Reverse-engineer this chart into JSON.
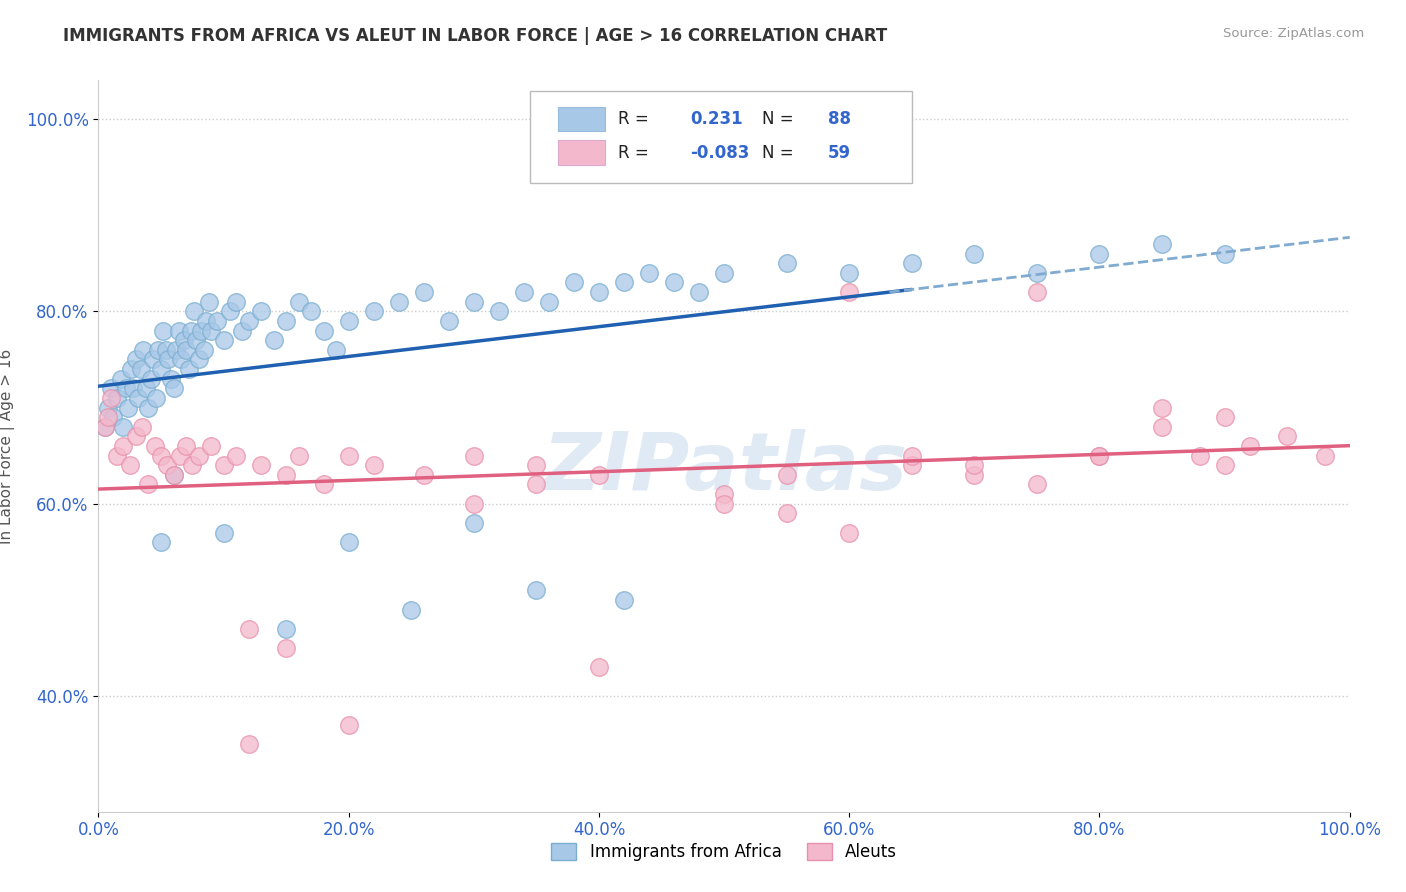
{
  "title": "IMMIGRANTS FROM AFRICA VS ALEUT IN LABOR FORCE | AGE > 16 CORRELATION CHART",
  "source": "Source: ZipAtlas.com",
  "ylabel": "In Labor Force | Age > 16",
  "xlim": [
    0.0,
    1.0
  ],
  "ylim": [
    0.28,
    1.04
  ],
  "x_ticks": [
    0.0,
    0.2,
    0.4,
    0.6,
    0.8,
    1.0
  ],
  "x_tick_labels": [
    "0.0%",
    "20.0%",
    "40.0%",
    "60.0%",
    "80.0%",
    "100.0%"
  ],
  "y_ticks": [
    0.4,
    0.6,
    0.8,
    1.0
  ],
  "y_tick_labels": [
    "40.0%",
    "60.0%",
    "80.0%",
    "100.0%"
  ],
  "r_africa": 0.231,
  "n_africa": 88,
  "r_aleut": -0.083,
  "n_aleut": 59,
  "blue_color": "#a8c8e8",
  "blue_edge_color": "#7aaed0",
  "pink_color": "#f4b8cc",
  "pink_edge_color": "#e890aa",
  "blue_line_color": "#2060b0",
  "pink_line_color": "#e06080",
  "blue_dash_color": "#80aad0",
  "watermark": "ZIPatlas",
  "watermark_color": "#ccdded",
  "legend_label_africa": "Immigrants from Africa",
  "legend_label_aleut": "Aleuts",
  "blue_scatter_x": [
    0.005,
    0.008,
    0.01,
    0.012,
    0.015,
    0.018,
    0.02,
    0.022,
    0.024,
    0.026,
    0.028,
    0.03,
    0.032,
    0.034,
    0.036,
    0.038,
    0.04,
    0.042,
    0.044,
    0.046,
    0.048,
    0.05,
    0.052,
    0.054,
    0.056,
    0.058,
    0.06,
    0.062,
    0.064,
    0.066,
    0.068,
    0.07,
    0.072,
    0.074,
    0.076,
    0.078,
    0.08,
    0.082,
    0.084,
    0.086,
    0.088,
    0.09,
    0.095,
    0.1,
    0.105,
    0.11,
    0.115,
    0.12,
    0.13,
    0.14,
    0.15,
    0.16,
    0.17,
    0.18,
    0.19,
    0.2,
    0.22,
    0.24,
    0.26,
    0.28,
    0.3,
    0.32,
    0.34,
    0.36,
    0.38,
    0.4,
    0.42,
    0.44,
    0.46,
    0.48,
    0.5,
    0.55,
    0.6,
    0.65,
    0.7,
    0.75,
    0.8,
    0.85,
    0.9,
    0.35,
    0.25,
    0.15,
    0.42,
    0.2,
    0.3,
    0.1,
    0.06,
    0.05
  ],
  "blue_scatter_y": [
    0.68,
    0.7,
    0.72,
    0.69,
    0.71,
    0.73,
    0.68,
    0.72,
    0.7,
    0.74,
    0.72,
    0.75,
    0.71,
    0.74,
    0.76,
    0.72,
    0.7,
    0.73,
    0.75,
    0.71,
    0.76,
    0.74,
    0.78,
    0.76,
    0.75,
    0.73,
    0.72,
    0.76,
    0.78,
    0.75,
    0.77,
    0.76,
    0.74,
    0.78,
    0.8,
    0.77,
    0.75,
    0.78,
    0.76,
    0.79,
    0.81,
    0.78,
    0.79,
    0.77,
    0.8,
    0.81,
    0.78,
    0.79,
    0.8,
    0.77,
    0.79,
    0.81,
    0.8,
    0.78,
    0.76,
    0.79,
    0.8,
    0.81,
    0.82,
    0.79,
    0.81,
    0.8,
    0.82,
    0.81,
    0.83,
    0.82,
    0.83,
    0.84,
    0.83,
    0.82,
    0.84,
    0.85,
    0.84,
    0.85,
    0.86,
    0.84,
    0.86,
    0.87,
    0.86,
    0.51,
    0.49,
    0.47,
    0.5,
    0.56,
    0.58,
    0.57,
    0.63,
    0.56
  ],
  "pink_scatter_x": [
    0.005,
    0.008,
    0.01,
    0.015,
    0.02,
    0.025,
    0.03,
    0.035,
    0.04,
    0.045,
    0.05,
    0.055,
    0.06,
    0.065,
    0.07,
    0.075,
    0.08,
    0.09,
    0.1,
    0.11,
    0.12,
    0.13,
    0.15,
    0.16,
    0.18,
    0.2,
    0.22,
    0.26,
    0.3,
    0.35,
    0.4,
    0.5,
    0.55,
    0.6,
    0.65,
    0.7,
    0.75,
    0.8,
    0.85,
    0.88,
    0.9,
    0.92,
    0.95,
    0.98,
    0.85,
    0.9,
    0.75,
    0.8,
    0.7,
    0.65,
    0.4,
    0.35,
    0.3,
    0.6,
    0.55,
    0.5,
    0.2,
    0.15,
    0.12
  ],
  "pink_scatter_y": [
    0.68,
    0.69,
    0.71,
    0.65,
    0.66,
    0.64,
    0.67,
    0.68,
    0.62,
    0.66,
    0.65,
    0.64,
    0.63,
    0.65,
    0.66,
    0.64,
    0.65,
    0.66,
    0.64,
    0.65,
    0.47,
    0.64,
    0.63,
    0.65,
    0.62,
    0.65,
    0.64,
    0.63,
    0.65,
    0.64,
    0.63,
    0.61,
    0.63,
    0.82,
    0.64,
    0.63,
    0.62,
    0.65,
    0.68,
    0.65,
    0.64,
    0.66,
    0.67,
    0.65,
    0.7,
    0.69,
    0.82,
    0.65,
    0.64,
    0.65,
    0.43,
    0.62,
    0.6,
    0.57,
    0.59,
    0.6,
    0.37,
    0.45,
    0.35
  ]
}
